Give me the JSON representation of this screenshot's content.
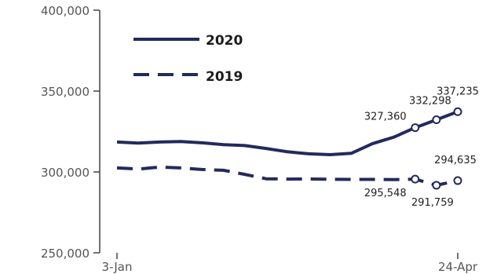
{
  "chart_data": {
    "type": "line",
    "title": "",
    "xlabel": "",
    "ylabel": "",
    "ylim": [
      250000,
      400000
    ],
    "yticks": [
      250000,
      300000,
      350000,
      400000
    ],
    "ytick_labels": [
      "250,000",
      "300,000",
      "350,000",
      "400,000"
    ],
    "xtick_labels": [
      "3-Jan",
      "24-Apr"
    ],
    "x": [
      "3-Jan",
      "10-Jan",
      "17-Jan",
      "24-Jan",
      "31-Jan",
      "7-Feb",
      "14-Feb",
      "21-Feb",
      "28-Feb",
      "6-Mar",
      "13-Mar",
      "20-Mar",
      "27-Mar",
      "3-Apr",
      "10-Apr",
      "17-Apr",
      "24-Apr"
    ],
    "legend_position": "top-left",
    "grid": false,
    "series": [
      {
        "name": "2020",
        "style": "solid",
        "color": "#232a5c",
        "values": [
          318500,
          317800,
          318500,
          318800,
          318000,
          316900,
          316300,
          314500,
          312500,
          311200,
          310700,
          311500,
          317500,
          321500,
          327360,
          332298,
          337235
        ],
        "labels": [
          "327,360",
          "332,298",
          "337,235"
        ],
        "labeled_from_index": 14
      },
      {
        "name": "2019",
        "style": "dashed",
        "color": "#232a5c",
        "values": [
          302500,
          301800,
          303000,
          302500,
          301500,
          301000,
          298500,
          295800,
          295600,
          295700,
          295500,
          295400,
          295400,
          295300,
          295548,
          291759,
          294635
        ],
        "labels": [
          "295,548",
          "291,759",
          "294,635"
        ],
        "labeled_from_index": 14
      }
    ]
  }
}
